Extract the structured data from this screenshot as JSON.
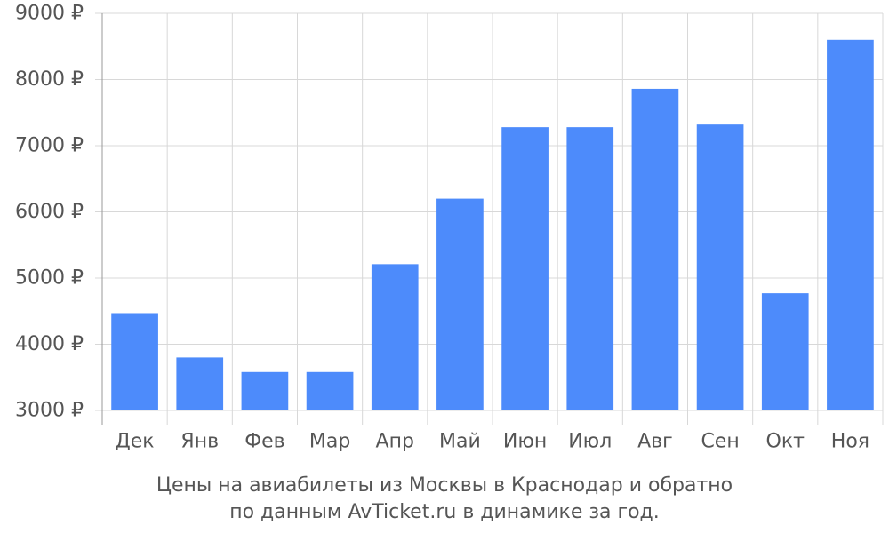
{
  "chart_data": {
    "type": "bar",
    "categories": [
      "Дек",
      "Янв",
      "Фев",
      "Мар",
      "Апр",
      "Май",
      "Июн",
      "Июл",
      "Авг",
      "Сен",
      "Окт",
      "Ноя"
    ],
    "values": [
      4470,
      3800,
      3580,
      3580,
      5210,
      6200,
      7280,
      7280,
      7860,
      7320,
      4770,
      8600
    ],
    "y_ticks": [
      "3000 ₽",
      "4000 ₽",
      "5000 ₽",
      "6000 ₽",
      "7000 ₽",
      "8000 ₽",
      "9000 ₽"
    ],
    "ylim": [
      3000,
      9000
    ],
    "tick_step": 1000,
    "grid": true,
    "bar_color": "#4d8bfb",
    "grid_color": "#d8d8d8",
    "text_color": "#555555"
  },
  "caption": {
    "line1": "Цены на авиабилеты из Москвы в Краснодар и обратно",
    "line2": "по данным AvTicket.ru в динамике за год."
  }
}
